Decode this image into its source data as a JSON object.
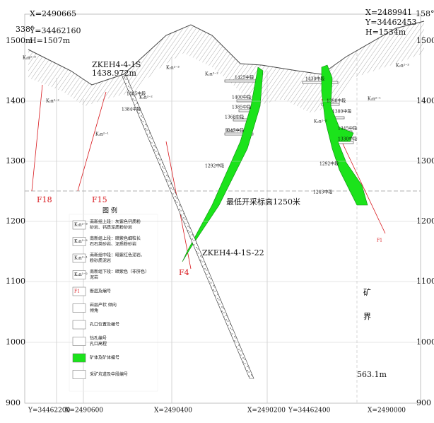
{
  "corners": {
    "left": {
      "azimuth": "338°",
      "x": "X=2490665",
      "y": "Y=34462160",
      "h": "H=1507m"
    },
    "right": {
      "azimuth": "158°",
      "x": "X=2489941",
      "y": "Y=34462453",
      "h": "H=1534m"
    }
  },
  "elevation_labels_left": [
    "1500m",
    "1400",
    "1300",
    "1200",
    "1100",
    "1000",
    "900"
  ],
  "elevation_labels_right": [
    "1500m",
    "1400",
    "1300",
    "1200",
    "1100",
    "1000",
    "900"
  ],
  "bottom_coords": [
    "Y=34462200",
    "X=2490600",
    "X=2490400",
    "X=2490200",
    "Y=34462400",
    "X=2490000"
  ],
  "drillhole": {
    "name": "ZKEH4-4-1S",
    "elevation": "1438.972m",
    "depth": "563.1m",
    "sample": "ZKEH4-4-1S-22"
  },
  "faults": [
    "F18",
    "F15",
    "F4",
    "F1"
  ],
  "cutoff_label": "最低开采标高1250米",
  "boundary": [
    "矿",
    "界"
  ],
  "levels": [
    "1425中段",
    "1400中段",
    "1385中段",
    "1368中段",
    "1345中段",
    "1292中段",
    "1430中段",
    "1390中段",
    "1380中段",
    "1345中段",
    "1330中段",
    "1292中段",
    "1243中段",
    "1405中段",
    "1384中段"
  ],
  "strata": [
    "K₂n²⁻³",
    "K₂n²⁻²",
    "K₂n²⁻¹",
    "K₂n²⁻²",
    "K₂n²⁻³",
    "K₂n²⁻²",
    "K₂n²⁻¹",
    "K₂n²⁻²",
    "K₂n²⁻³",
    "K₂n²⁻¹"
  ],
  "legend": {
    "title": "图  例",
    "items": [
      {
        "symbol": "K₂n²⁻³",
        "lines": [
          "南新组上段：灰紫色钙质粉",
          "砂岩、钙质泥质粉砂岩"
        ]
      },
      {
        "symbol": "K₂n²⁻²",
        "lines": [
          "南新组上段：暗紫色细粒长",
          "石石英砂岩、泥质粉砂岩"
        ]
      },
      {
        "symbol": "K₂n²⁻¹",
        "lines": [
          "南新组中段：暗紫红色泥岩、",
          "粉砂质泥岩"
        ]
      },
      {
        "symbol": "K₂n¹⁻²",
        "lines": [
          "南新组下段：暗紫色（非肝色）",
          "泥岩"
        ]
      },
      {
        "symbol": "F1",
        "lines": [
          "断层及编号"
        ]
      },
      {
        "symbol": "",
        "lines": [
          "岩层产状 倾向",
          "倾角"
        ]
      },
      {
        "symbol": "",
        "lines": [
          "孔口位置及编号"
        ]
      },
      {
        "symbol": "",
        "lines": [
          "钻孔编号",
          "孔口高程"
        ]
      },
      {
        "symbol": "",
        "lines": [
          "矿体及矿体编号"
        ]
      },
      {
        "symbol": "",
        "lines": [
          "采矿坑道及中段编号"
        ]
      }
    ]
  }
}
